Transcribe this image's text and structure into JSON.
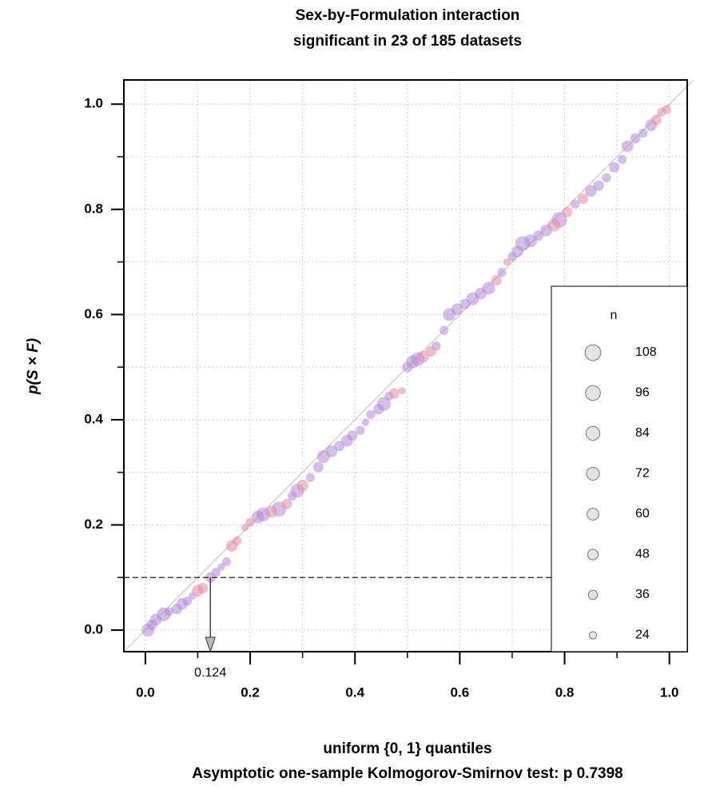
{
  "chart_data": {
    "type": "scatter",
    "title": [
      "Sex-by-Formulation interaction",
      "significant in 23 of 185 datasets"
    ],
    "x_label": "uniform {0, 1} quantiles",
    "y_label": "p(S × F)",
    "subtitle": "Asymptotic one-sample Kolmogorov-Smirnov test: p 0.7398",
    "xlim": [
      -0.041,
      1.034
    ],
    "ylim": [
      -0.041,
      1.046
    ],
    "xticks": [
      {
        "value": 0,
        "label": "0.0"
      },
      0.2,
      0.4,
      0.6,
      0.8,
      {
        "value": 1,
        "label": "1.0"
      }
    ],
    "yticks": [
      {
        "value": 0,
        "label": "0.0"
      },
      0.2,
      0.4,
      0.6,
      0.8,
      {
        "value": 1,
        "label": "1.0"
      }
    ],
    "minor_ticks": [
      0.1,
      0.3,
      0.5,
      0.7,
      0.9
    ],
    "grid": true,
    "threshold": 0.1,
    "critical_x": 0.124,
    "legend": {
      "title": "n",
      "sizes": [
        108,
        96,
        84,
        72,
        60,
        48,
        36,
        24
      ]
    },
    "series": [
      {
        "color": "#b28ad6",
        "x": [
          0.005,
          0.012,
          0.02,
          0.035,
          0.045,
          0.06,
          0.07,
          0.08,
          0.09,
          0.124,
          0.135,
          0.145,
          0.155,
          0.215,
          0.225,
          0.255,
          0.28,
          0.29,
          0.315,
          0.33,
          0.34,
          0.355,
          0.37,
          0.385,
          0.395,
          0.41,
          0.42,
          0.43,
          0.445,
          0.455,
          0.465,
          0.5,
          0.51,
          0.52,
          0.555,
          0.57,
          0.58,
          0.595,
          0.61,
          0.625,
          0.64,
          0.655,
          0.68,
          0.7,
          0.71,
          0.72,
          0.735,
          0.75,
          0.765,
          0.79,
          0.82,
          0.85,
          0.865,
          0.88,
          0.895,
          0.91,
          0.92,
          0.935,
          0.95,
          0.965
        ],
        "values": [
          0.0,
          0.01,
          0.02,
          0.03,
          0.035,
          0.04,
          0.05,
          0.055,
          0.065,
          0.1,
          0.11,
          0.12,
          0.13,
          0.215,
          0.22,
          0.23,
          0.255,
          0.265,
          0.29,
          0.31,
          0.33,
          0.34,
          0.35,
          0.36,
          0.37,
          0.38,
          0.395,
          0.41,
          0.42,
          0.43,
          0.445,
          0.5,
          0.51,
          0.515,
          0.54,
          0.57,
          0.6,
          0.61,
          0.62,
          0.63,
          0.64,
          0.65,
          0.68,
          0.71,
          0.72,
          0.735,
          0.74,
          0.75,
          0.76,
          0.78,
          0.81,
          0.835,
          0.845,
          0.86,
          0.88,
          0.895,
          0.92,
          0.935,
          0.945,
          0.96
        ],
        "sizes": [
          72,
          48,
          60,
          84,
          36,
          48,
          60,
          36,
          24,
          48,
          36,
          24,
          36,
          72,
          84,
          96,
          36,
          84,
          36,
          48,
          72,
          60,
          48,
          60,
          48,
          36,
          24,
          36,
          48,
          84,
          36,
          48,
          72,
          84,
          36,
          36,
          72,
          60,
          48,
          72,
          60,
          72,
          36,
          36,
          60,
          96,
          72,
          48,
          60,
          108,
          36,
          60,
          48,
          36,
          48,
          36,
          60,
          48,
          36,
          60
        ]
      },
      {
        "color": "#e48aa6",
        "x": [
          0.1,
          0.11,
          0.165,
          0.175,
          0.19,
          0.2,
          0.24,
          0.27,
          0.3,
          0.475,
          0.49,
          0.53,
          0.545,
          0.67,
          0.69,
          0.78,
          0.805,
          0.835,
          0.975,
          0.985,
          0.995
        ],
        "values": [
          0.075,
          0.08,
          0.16,
          0.17,
          0.195,
          0.205,
          0.225,
          0.24,
          0.275,
          0.45,
          0.455,
          0.52,
          0.53,
          0.665,
          0.7,
          0.77,
          0.795,
          0.82,
          0.97,
          0.985,
          0.99
        ],
        "sizes": [
          60,
          48,
          60,
          36,
          24,
          36,
          60,
          48,
          60,
          48,
          24,
          60,
          48,
          48,
          24,
          72,
          48,
          48,
          48,
          36,
          36
        ]
      }
    ]
  }
}
